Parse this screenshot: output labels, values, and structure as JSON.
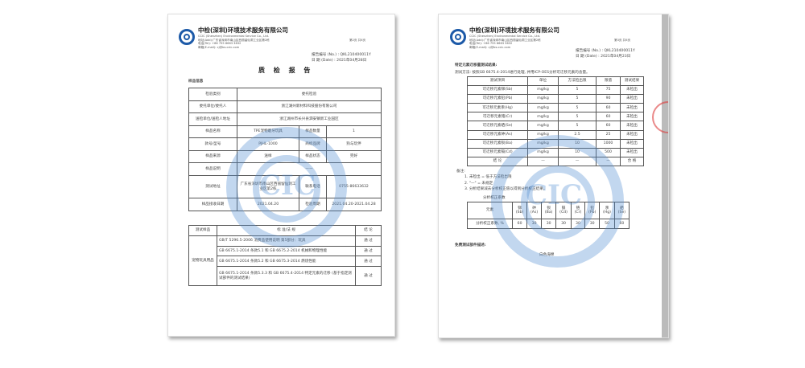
{
  "company": {
    "name_cn": "中检(深圳)环境技术服务有限公司",
    "name_en": "CCIC (Shenzhen) Environmental Service Co., Ltd.",
    "address": "地址(Add):广东省深圳市南山区西丽留仙洞工业区第2栋",
    "tel": "电话(Tel): +86 755 8663 3632",
    "email": "邮箱(E-mail): cj@bs.ccic.com"
  },
  "page1": {
    "page_no": "第2页 共6页",
    "report_no": "报告编号 (No.) :  QKL210400011Y",
    "date": "日 期 (Date)   :  2021年04月28日",
    "title": "质 检 报 告",
    "section": "样品信息",
    "info_rows": [
      [
        "检验类别",
        "委托检验"
      ],
      [
        "委托单位/委托人",
        "浙江湖州新材料科技股份有限公司"
      ],
      [
        "送检单位/送检人地址",
        "浙江湖州市长兴县泗安镇新工业园区"
      ]
    ],
    "info_pairs": [
      [
        "样品名称",
        "TPE宠物磨牙玩具",
        "样品数量",
        "1"
      ],
      [
        "款号/型号",
        "PJHL-1000",
        "商标品牌",
        "狗与玩伴"
      ],
      [
        "样品来源",
        "送样",
        "样品状态",
        "完好"
      ]
    ],
    "remark_label": "样品说明",
    "remark_value": "——",
    "lab_label": "测试地址",
    "lab_value": "广东省深圳市南山区西丽留仙洞工业区第2栋",
    "phone_label": "联系电话",
    "phone_value": "0755-86633632",
    "recv_label": "样品接收日期",
    "recv_value": "2021.04.20",
    "test_label": "检验周期",
    "test_value": "2021.04.20-2021.04.28",
    "test_header": [
      "测试样品",
      "标 准/法 规",
      "结 论"
    ],
    "test_sample": "宠物玩具用品",
    "tests": [
      [
        "GB/T 5296.5-2006 消费品使用说明 第5部分：玩具",
        "通 过"
      ],
      [
        "GB 6675.1-2014 条款5.1 和 GB 6675.2-2014 机械和物理性能",
        "通 过"
      ],
      [
        "GB 6675.1-2014 条款5.2 和 GB 6675.3-2014 燃烧性能",
        "通 过"
      ],
      [
        "GB 6675.1-2014 条款5.3.3 和 GB 6675.4-2014 特定元素的迁移 (基于指定测试部件的测试结果)",
        "通 过"
      ]
    ]
  },
  "page2": {
    "page_no": "第3页 共6页",
    "report_no": "报告编号 (No.) :  QKL210400011Y",
    "date": "日 期 (Date)   :  2021年04月23日",
    "section": "特定元素迁移量测试结果:",
    "method": "测试方法: 按照GB 6675.4-2014进行处理, 并用ICP-OES分析可迁移元素的含量。",
    "header": [
      "测试项目",
      "单位",
      "方法检出限",
      "限值",
      "测试结果"
    ],
    "rows": [
      [
        "可迁移元素锑(Sb)",
        "mg/kg",
        "5",
        "75",
        "未检出"
      ],
      [
        "可迁移元素铅(Pb)",
        "mg/kg",
        "5",
        "90",
        "未检出"
      ],
      [
        "可迁移元素汞(Hg)",
        "mg/kg",
        "5",
        "60",
        "未检出"
      ],
      [
        "可迁移元素铬(Cr)",
        "mg/kg",
        "5",
        "60",
        "未检出"
      ],
      [
        "可迁移元素硒(Se)",
        "mg/kg",
        "5",
        "60",
        "未检出"
      ],
      [
        "可迁移元素砷(As)",
        "mg/kg",
        "2.5",
        "25",
        "未检出"
      ],
      [
        "可迁移元素钡(Ba)",
        "mg/kg",
        "10",
        "1000",
        "未检出"
      ],
      [
        "可迁移元素镉(Cd)",
        "mg/kg",
        "10",
        "500",
        "未检出"
      ],
      [
        "结 论",
        "—",
        "—",
        "—",
        "合 格"
      ]
    ],
    "notes_title": "备注:",
    "notes": [
      "1.  未检出 = 低于方法检出限",
      "2.  \"—\" = 未规定",
      "3.  分析结果减去分析校正值以得到分析校正结果。"
    ],
    "corr_title": "分析校正系数",
    "corr_label": "元素",
    "corr_elements": [
      "锑 (Sb)",
      "砷 (As)",
      "钡 (Ba)",
      "镉 (Cd)",
      "铬 (Cr)",
      "铅 (Pb)",
      "汞 (Hg)",
      "硒 (Se)"
    ],
    "corr_row_label": "分析校正系数, %",
    "corr_values": [
      "60",
      "30",
      "30",
      "30",
      "30",
      "30",
      "50",
      "60"
    ],
    "part_title": "免费测试部件描述:",
    "part_desc": "白色海绵"
  },
  "watermark": "CIC"
}
